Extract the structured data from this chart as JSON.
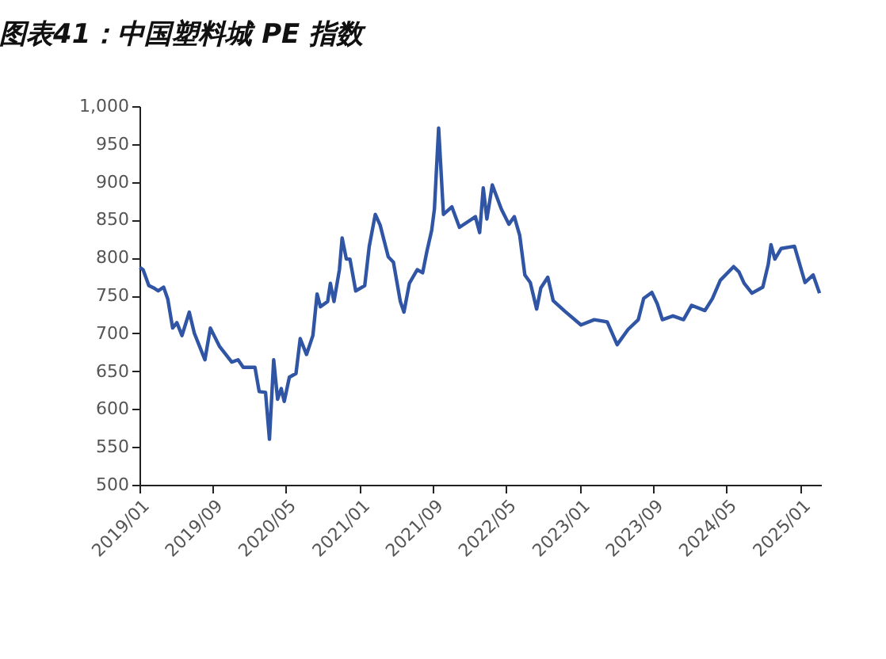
{
  "chart_data": {
    "type": "line",
    "title": "图表41：中国塑料城 PE 指数",
    "x": [
      "2019-01-02",
      "2019-01-13",
      "2019-02-01",
      "2019-02-17",
      "2019-03-04",
      "2019-03-22",
      "2019-04-05",
      "2019-04-21",
      "2019-05-05",
      "2019-05-22",
      "2019-06-15",
      "2019-07-02",
      "2019-08-06",
      "2019-08-24",
      "2019-09-23",
      "2019-11-03",
      "2019-11-24",
      "2019-12-11",
      "2020-01-19",
      "2020-02-02",
      "2020-02-23",
      "2020-03-07",
      "2020-03-21",
      "2020-04-03",
      "2020-04-15",
      "2020-04-25",
      "2020-05-12",
      "2020-06-03",
      "2020-06-17",
      "2020-07-08",
      "2020-07-29",
      "2020-08-12",
      "2020-08-23",
      "2020-09-16",
      "2020-09-25",
      "2020-10-07",
      "2020-10-25",
      "2020-11-03",
      "2020-11-17",
      "2020-11-29",
      "2020-12-18",
      "2021-01-17",
      "2021-02-01",
      "2021-02-21",
      "2021-03-09",
      "2021-04-05",
      "2021-04-22",
      "2021-05-15",
      "2021-05-27",
      "2021-06-14",
      "2021-07-10",
      "2021-07-28",
      "2021-08-11",
      "2021-08-27",
      "2021-09-05",
      "2021-09-19",
      "2021-10-05",
      "2021-11-02",
      "2021-11-27",
      "2022-01-19",
      "2022-02-02",
      "2022-02-14",
      "2022-02-26",
      "2022-03-16",
      "2022-04-15",
      "2022-05-10",
      "2022-05-28",
      "2022-06-15",
      "2022-07-02",
      "2022-07-20",
      "2022-08-10",
      "2022-08-24",
      "2022-09-16",
      "2022-10-04",
      "2022-11-12",
      "2023-01-04",
      "2023-02-17",
      "2023-04-01",
      "2023-05-04",
      "2023-06-09",
      "2023-07-13",
      "2023-07-31",
      "2023-08-27",
      "2023-09-14",
      "2023-10-01",
      "2023-11-05",
      "2023-12-10",
      "2024-01-06",
      "2024-02-19",
      "2024-03-15",
      "2024-04-10",
      "2024-05-24",
      "2024-06-11",
      "2024-06-28",
      "2024-07-24",
      "2024-08-29",
      "2024-09-16",
      "2024-09-25",
      "2024-10-08",
      "2024-10-29",
      "2024-12-12",
      "2025-01-16",
      "2025-02-12",
      "2025-03-05"
    ],
    "series": [
      {
        "color": "#2f55a4",
        "values": [
          787,
          784,
          763,
          760,
          756,
          761,
          745,
          707,
          714,
          697,
          728,
          700,
          665,
          707,
          683,
          662,
          665,
          655,
          655,
          623,
          622,
          560,
          665,
          613,
          627,
          610,
          642,
          647,
          693,
          672,
          697,
          752,
          735,
          742,
          766,
          742,
          784,
          826,
          798,
          798,
          756,
          763,
          815,
          857,
          843,
          801,
          794,
          742,
          728,
          766,
          784,
          780,
          808,
          836,
          864,
          971,
          857,
          867,
          840,
          854,
          833,
          892,
          851,
          896,
          864,
          844,
          854,
          829,
          777,
          767,
          732,
          760,
          774,
          743,
          729,
          711,
          718,
          715,
          685,
          705,
          718,
          746,
          754,
          739,
          718,
          723,
          718,
          737,
          730,
          746,
          770,
          788,
          781,
          766,
          753,
          761,
          791,
          817,
          798,
          812,
          815,
          767,
          777,
          753
        ]
      }
    ],
    "xlim": [
      "2019-01-01",
      "2025-03-10"
    ],
    "xticks": [
      {
        "value": "2019-01",
        "label": "2019/01"
      },
      {
        "value": "2019-09",
        "label": "2019/09"
      },
      {
        "value": "2020-05",
        "label": "2020/05"
      },
      {
        "value": "2021-01",
        "label": "2021/01"
      },
      {
        "value": "2021-09",
        "label": "2021/09"
      },
      {
        "value": "2022-05",
        "label": "2022/05"
      },
      {
        "value": "2023-01",
        "label": "2023/01"
      },
      {
        "value": "2023-09",
        "label": "2023/09"
      },
      {
        "value": "2024-05",
        "label": "2024/05"
      },
      {
        "value": "2025-01",
        "label": "2025/01"
      }
    ],
    "ylim": [
      500,
      1000
    ],
    "yticks": [
      500,
      550,
      600,
      650,
      700,
      750,
      800,
      850,
      900,
      950,
      {
        "value": 1000,
        "label": "1,000"
      }
    ],
    "grid": false
  }
}
